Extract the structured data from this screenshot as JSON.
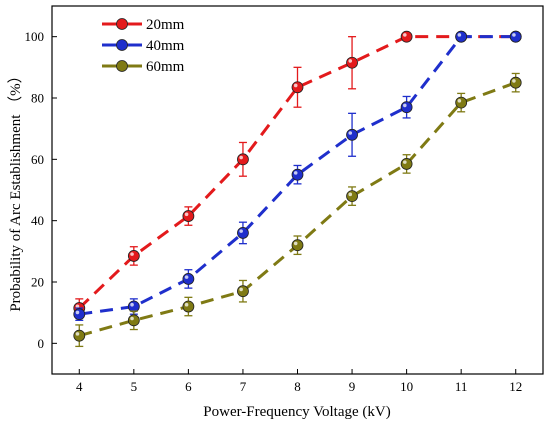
{
  "chart_data": {
    "type": "line",
    "title": "",
    "xlabel": "Power-Frequency Voltage (kV)",
    "ylabel": "Probability of Arc Establishment （%）",
    "xlim": [
      3.5,
      12.5
    ],
    "ylim": [
      -10,
      110
    ],
    "xticks": [
      4,
      5,
      6,
      7,
      8,
      9,
      10,
      11,
      12
    ],
    "yticks": [
      0,
      20,
      40,
      60,
      80,
      100
    ],
    "grid": false,
    "legend_position": "top-left",
    "series": [
      {
        "name": "20mm",
        "color": "#e31a1c",
        "x": [
          4,
          5,
          6,
          7,
          8,
          9,
          10,
          11,
          12
        ],
        "y": [
          11.5,
          28.5,
          41.5,
          60,
          83.5,
          91.5,
          100,
          100,
          100
        ],
        "err": [
          3,
          3,
          3,
          5.5,
          6.5,
          8.5,
          0,
          0,
          0
        ]
      },
      {
        "name": "40mm",
        "color": "#1f2fcc",
        "x": [
          4,
          5,
          6,
          7,
          8,
          9,
          10,
          11,
          12
        ],
        "y": [
          9.5,
          12,
          21,
          36,
          55,
          68,
          77,
          100,
          100
        ],
        "err": [
          2,
          2.5,
          3,
          3.5,
          3,
          7,
          3.5,
          0,
          0
        ]
      },
      {
        "name": "60mm",
        "color": "#7f7a14",
        "x": [
          4,
          5,
          6,
          7,
          8,
          9,
          10,
          11,
          12
        ],
        "y": [
          2.5,
          7.5,
          12,
          17,
          32,
          48,
          58.5,
          78.5,
          85
        ],
        "err": [
          3.5,
          3,
          3,
          3.5,
          3,
          3,
          3,
          3,
          3
        ]
      }
    ]
  }
}
